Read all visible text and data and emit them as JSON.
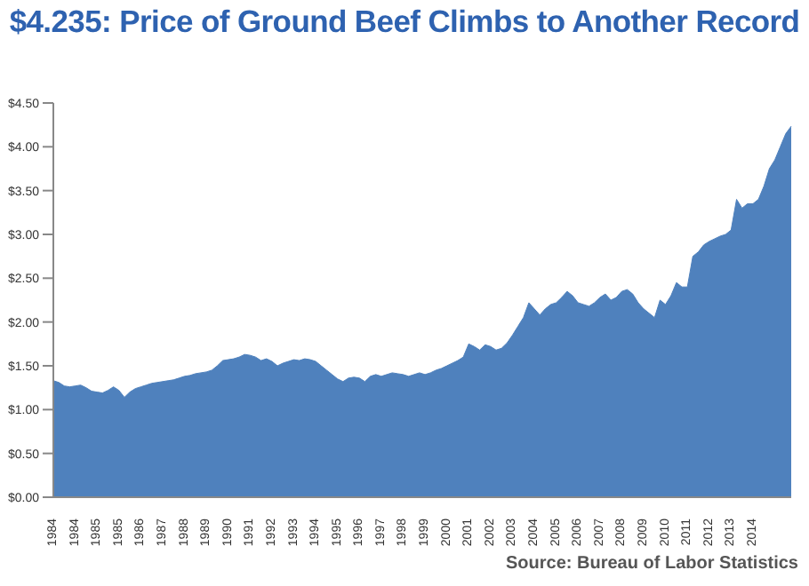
{
  "chart_data": {
    "type": "area",
    "title": "$4.235: Price of Ground Beef Climbs to Another Record",
    "categories": [
      "1984",
      null,
      null,
      null,
      "1984",
      null,
      null,
      null,
      "1985",
      null,
      null,
      null,
      "1985",
      null,
      null,
      null,
      "1986",
      null,
      null,
      null,
      "1987",
      null,
      null,
      null,
      "1988",
      null,
      null,
      null,
      "1989",
      null,
      null,
      null,
      "1990",
      null,
      null,
      null,
      "1991",
      null,
      null,
      null,
      "1992",
      null,
      null,
      null,
      "1993",
      null,
      null,
      null,
      "1994",
      null,
      null,
      null,
      "1995",
      null,
      null,
      null,
      "1996",
      null,
      null,
      null,
      "1997",
      null,
      null,
      null,
      "1998",
      null,
      null,
      null,
      "1999",
      null,
      null,
      null,
      "2000",
      null,
      null,
      null,
      "2001",
      null,
      null,
      null,
      "2002",
      null,
      null,
      null,
      "2003",
      null,
      null,
      null,
      "2004",
      null,
      null,
      null,
      "2005",
      null,
      null,
      null,
      "2006",
      null,
      null,
      null,
      "2007",
      null,
      null,
      null,
      "2008",
      null,
      null,
      null,
      "2009",
      null,
      null,
      null,
      "2010",
      null,
      null,
      null,
      "2011",
      null,
      null,
      null,
      "2012",
      null,
      null,
      null,
      "2013",
      null,
      null,
      null,
      "2014",
      null,
      null,
      null,
      null,
      null,
      null,
      null
    ],
    "series": [
      {
        "color": "#4f81bd",
        "values": [
          1.33,
          1.31,
          1.27,
          1.26,
          1.27,
          1.28,
          1.25,
          1.21,
          1.2,
          1.19,
          1.22,
          1.26,
          1.22,
          1.14,
          1.2,
          1.24,
          1.26,
          1.28,
          1.3,
          1.31,
          1.32,
          1.33,
          1.34,
          1.36,
          1.38,
          1.39,
          1.41,
          1.42,
          1.43,
          1.45,
          1.5,
          1.56,
          1.57,
          1.58,
          1.6,
          1.63,
          1.62,
          1.6,
          1.56,
          1.58,
          1.55,
          1.5,
          1.53,
          1.55,
          1.57,
          1.56,
          1.58,
          1.57,
          1.55,
          1.5,
          1.45,
          1.4,
          1.35,
          1.32,
          1.36,
          1.37,
          1.36,
          1.32,
          1.38,
          1.4,
          1.38,
          1.4,
          1.42,
          1.41,
          1.4,
          1.38,
          1.4,
          1.42,
          1.4,
          1.42,
          1.45,
          1.47,
          1.5,
          1.53,
          1.56,
          1.6,
          1.75,
          1.72,
          1.68,
          1.74,
          1.72,
          1.68,
          1.7,
          1.76,
          1.85,
          1.95,
          2.05,
          2.22,
          2.15,
          2.08,
          2.15,
          2.2,
          2.22,
          2.28,
          2.35,
          2.3,
          2.22,
          2.2,
          2.18,
          2.22,
          2.28,
          2.32,
          2.25,
          2.28,
          2.35,
          2.37,
          2.32,
          2.22,
          2.15,
          2.1,
          2.05,
          2.25,
          2.2,
          2.3,
          2.45,
          2.4,
          2.4,
          2.75,
          2.8,
          2.88,
          2.92,
          2.95,
          2.98,
          3.0,
          3.05,
          3.4,
          3.3,
          3.35,
          3.35,
          3.4,
          3.55,
          3.75,
          3.85,
          4.0,
          4.15,
          4.235
        ]
      }
    ],
    "ylim": [
      0,
      4.5
    ],
    "yticks": [
      {
        "value": 0,
        "label": "$0.00"
      },
      {
        "value": 0.5,
        "label": "$0.50"
      },
      {
        "value": 1,
        "label": "$1.00"
      },
      {
        "value": 1.5,
        "label": "$1.50"
      },
      {
        "value": 2,
        "label": "$2.00"
      },
      {
        "value": 2.5,
        "label": "$2.50"
      },
      {
        "value": 3,
        "label": "$3.00"
      },
      {
        "value": 3.5,
        "label": "$3.50"
      },
      {
        "value": 4,
        "label": "$4.00"
      },
      {
        "value": 4.5,
        "label": "$4.50"
      }
    ],
    "annotations": [
      "Source: Bureau of Labor Statistics"
    ]
  }
}
